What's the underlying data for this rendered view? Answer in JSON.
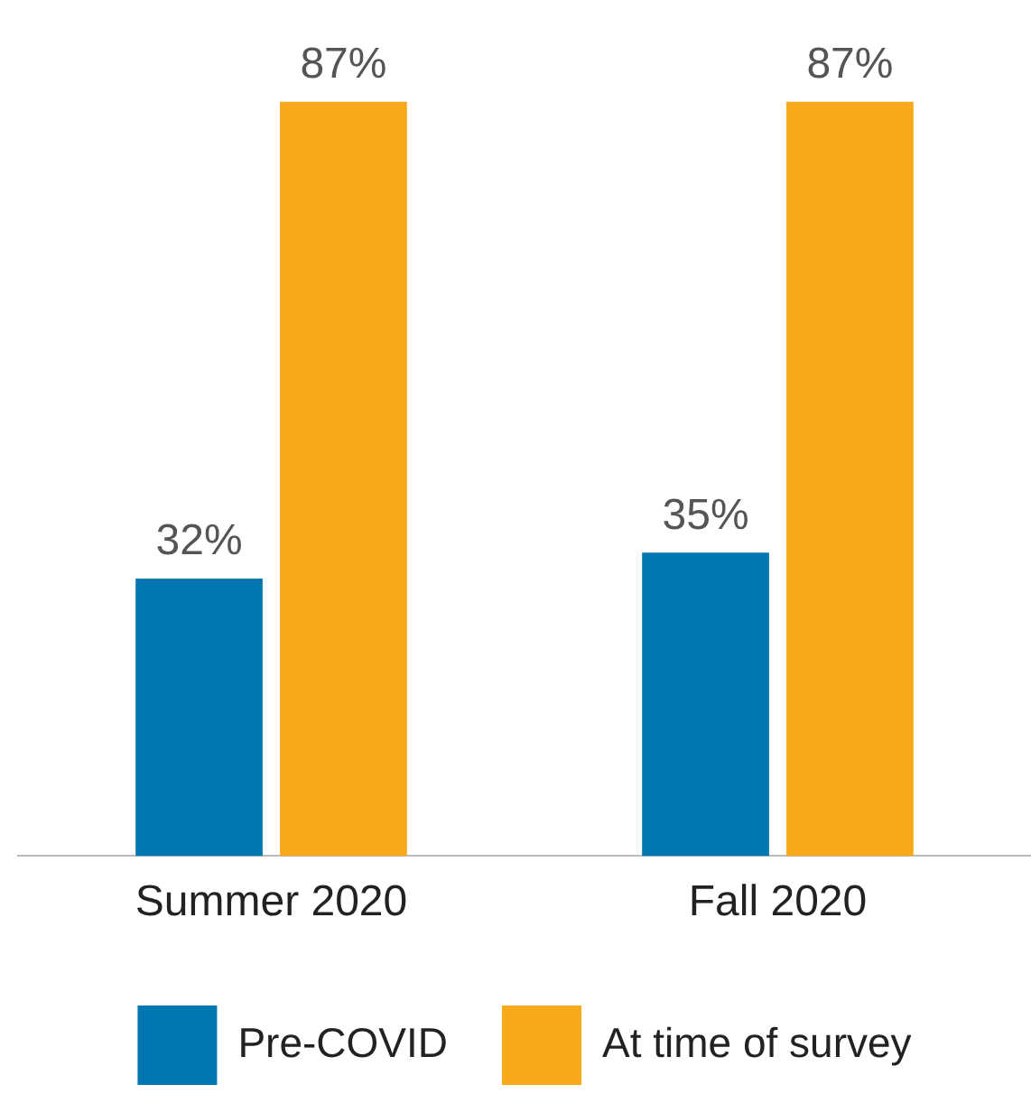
{
  "chart_data": {
    "type": "bar",
    "categories": [
      "Summer 2020",
      "Fall 2020"
    ],
    "series": [
      {
        "name": "Pre-COVID",
        "color": "#0077b1",
        "values": [
          32,
          35
        ],
        "value_labels": [
          "32%",
          "35%"
        ]
      },
      {
        "name": "At time of survey",
        "color": "#f9a81b",
        "values": [
          87,
          87
        ],
        "value_labels": [
          "87%",
          "87%"
        ]
      }
    ],
    "legend": "bottom",
    "grid": false
  }
}
